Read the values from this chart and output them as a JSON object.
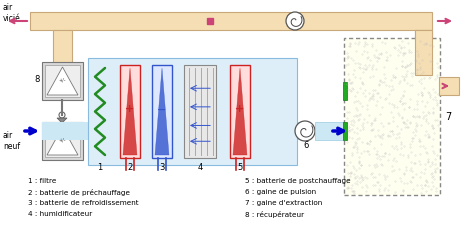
{
  "bg_color": "#ffffff",
  "duct_color": "#f5deb3",
  "duct_edge": "#c8a87a",
  "flow_color": "#cce8f5",
  "flow_edge": "#99cce0",
  "arrow_pink": "#cc4477",
  "arrow_blue": "#0000cc",
  "green_color": "#228b22",
  "red_color": "#cc2222",
  "blue_color": "#3355cc",
  "gray_color": "#aaaaaa",
  "room_fill": "#fffff0",
  "room_edge": "#888888",
  "ahu_fill": "#ddeef8",
  "ahu_edge": "#88bbdd",
  "legend_left": [
    "1 : filtre",
    "2 : batterie de préchauffage",
    "3 : batterie de refroidissement",
    "4 : humidificateur"
  ],
  "legend_right": [
    "5 : batterie de postchauffage",
    "6 : gaine de pulsion",
    "7 : gaine d'extraction",
    "8 : récupérateur"
  ]
}
